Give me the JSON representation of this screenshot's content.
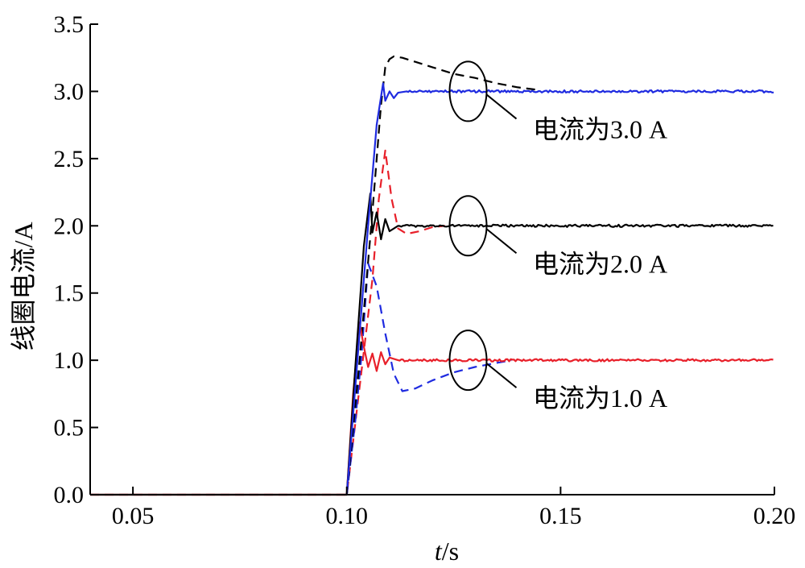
{
  "chart_data": {
    "type": "line",
    "xlabel_italic": "t",
    "xlabel_rest": "/s",
    "ylabel": "线圈电流/A",
    "xlim": [
      0.04,
      0.2
    ],
    "ylim": [
      0.0,
      3.5
    ],
    "x_ticks": [
      "0.05",
      "0.10",
      "0.15",
      "0.20"
    ],
    "y_ticks": [
      "0.0",
      "0.5",
      "1.0",
      "1.5",
      "2.0",
      "2.5",
      "3.0",
      "3.5"
    ],
    "grid": false,
    "colors": {
      "red": "#e8202a",
      "blue": "#1f2be0",
      "black": "#000000"
    },
    "series": [
      {
        "color": "red",
        "dashed": true,
        "x": [
          0.04,
          0.1,
          0.103,
          0.106,
          0.1075,
          0.109,
          0.1105,
          0.112,
          0.114,
          0.117,
          0.12,
          0.123
        ],
        "y": [
          0.0,
          0.0,
          0.8,
          1.6,
          2.2,
          2.56,
          2.2,
          1.98,
          1.94,
          1.96,
          1.99,
          2.0
        ]
      },
      {
        "color": "blue",
        "dashed": true,
        "x": [
          0.1,
          0.102,
          0.1035,
          0.105,
          0.107,
          0.109,
          0.111,
          0.113,
          0.116,
          0.12,
          0.125,
          0.13,
          0.135,
          0.1385
        ],
        "y": [
          0.0,
          0.55,
          1.05,
          1.72,
          1.55,
          1.2,
          0.9,
          0.77,
          0.79,
          0.85,
          0.91,
          0.95,
          0.98,
          1.0
        ]
      },
      {
        "color": "black",
        "dashed": true,
        "x": [
          0.1,
          0.103,
          0.106,
          0.108,
          0.109,
          0.11,
          0.111,
          0.113,
          0.116,
          0.12,
          0.125,
          0.13,
          0.135,
          0.14,
          0.145
        ],
        "y": [
          0.0,
          1.0,
          2.1,
          2.9,
          3.18,
          3.24,
          3.26,
          3.25,
          3.22,
          3.18,
          3.13,
          3.1,
          3.06,
          3.03,
          3.01
        ]
      },
      {
        "color": "red",
        "dashed": false,
        "target": 1.0,
        "x_end": 0.2,
        "x": [
          0.04,
          0.1,
          0.1015,
          0.103,
          0.104,
          0.105,
          0.106,
          0.107,
          0.108,
          0.109,
          0.11,
          0.112
        ],
        "y": [
          0.0,
          0.0,
          0.75,
          1.28,
          1.1,
          0.95,
          1.05,
          0.92,
          1.06,
          0.97,
          1.02,
          1.0
        ]
      },
      {
        "color": "black",
        "dashed": false,
        "target": 2.0,
        "x_end": 0.2,
        "x": [
          0.04,
          0.1,
          0.102,
          0.104,
          0.1055,
          0.106,
          0.107,
          0.108,
          0.109,
          0.11,
          0.112
        ],
        "y": [
          0.0,
          0.0,
          0.95,
          1.85,
          2.24,
          1.95,
          2.1,
          1.9,
          2.05,
          1.96,
          2.0
        ]
      },
      {
        "color": "blue",
        "dashed": false,
        "target": 3.0,
        "x_end": 0.2,
        "x": [
          0.1,
          0.1025,
          0.105,
          0.107,
          0.1085,
          0.109,
          0.11,
          0.111,
          0.112,
          0.114
        ],
        "y": [
          0.0,
          1.0,
          2.0,
          2.75,
          3.06,
          2.93,
          3.0,
          2.95,
          2.99,
          3.0
        ]
      }
    ],
    "annotations": [
      {
        "label": "电流为3.0 A",
        "x": 0.128,
        "y": 3.0
      },
      {
        "label": "电流为2.0 A",
        "x": 0.128,
        "y": 2.0
      },
      {
        "label": "电流为1.0 A",
        "x": 0.128,
        "y": 1.0
      }
    ]
  }
}
